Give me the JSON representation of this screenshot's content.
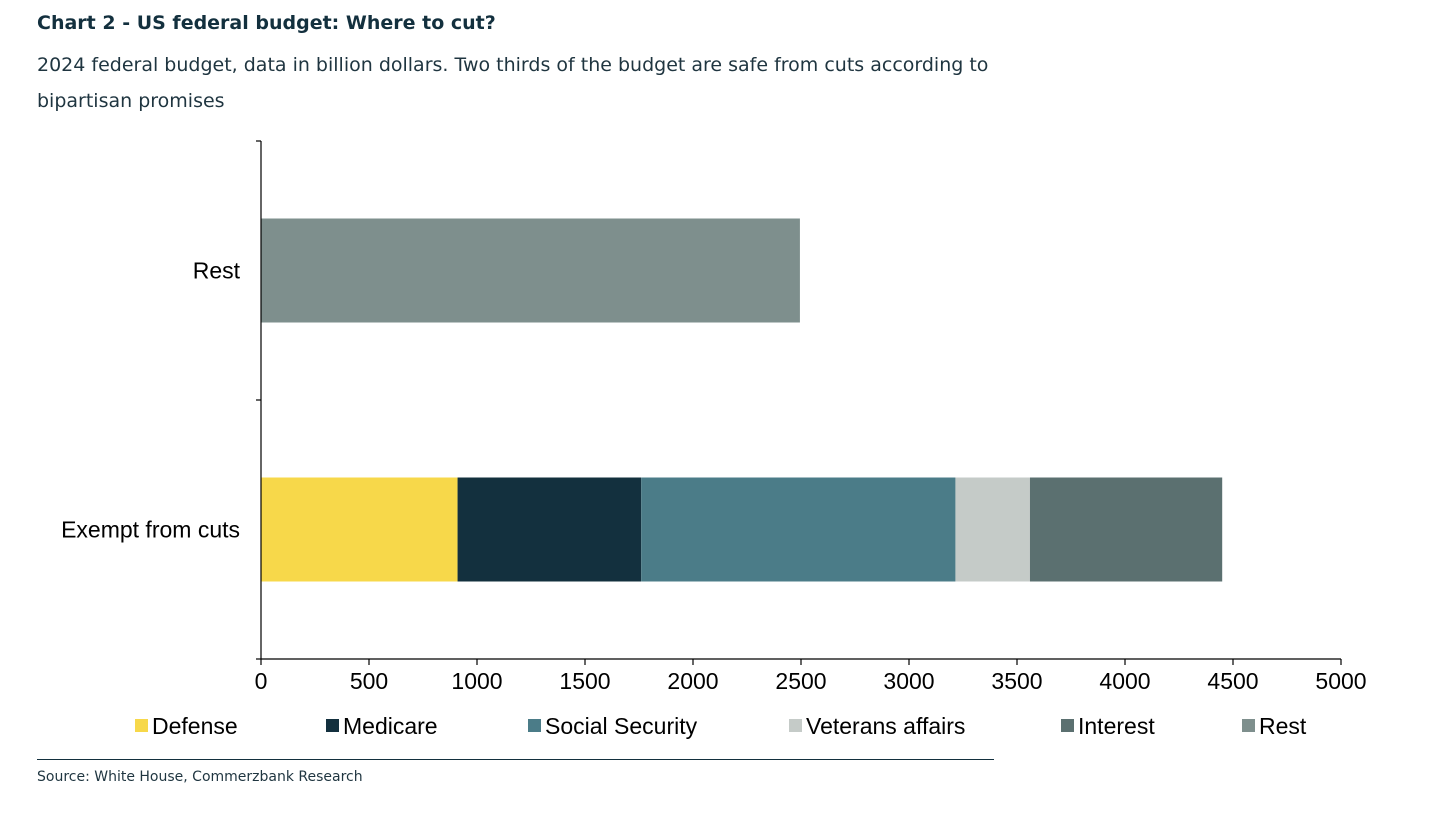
{
  "title": "Chart 2 - US federal budget: Where to cut?",
  "subtitle": "2024 federal budget, data in billion dollars. Two thirds of the budget are safe from cuts according to bipartisan promises",
  "source": "Source: White House, Commerzbank Research",
  "colors": {
    "Defense": "#f7d84a",
    "Medicare": "#13303e",
    "Social Security": "#4b7c88",
    "Veterans affairs": "#c5cbc8",
    "Interest": "#5b7070",
    "Rest": "#7e8f8d"
  },
  "chart_data": {
    "type": "bar",
    "orientation": "horizontal",
    "stacked": true,
    "categories": [
      "Rest",
      "Exempt from cuts"
    ],
    "series": [
      {
        "name": "Defense",
        "values": [
          0,
          910
        ]
      },
      {
        "name": "Medicare",
        "values": [
          0,
          850
        ]
      },
      {
        "name": "Social Security",
        "values": [
          0,
          1455
        ]
      },
      {
        "name": "Veterans affairs",
        "values": [
          0,
          345
        ]
      },
      {
        "name": "Interest",
        "values": [
          0,
          890
        ]
      },
      {
        "name": "Rest",
        "values": [
          2495,
          0
        ]
      }
    ],
    "xlim": [
      0,
      5000
    ],
    "xticks": [
      "0",
      "500",
      "1000",
      "1500",
      "2000",
      "2500",
      "3000",
      "3500",
      "4000",
      "4500",
      "5000"
    ],
    "xlabel": "",
    "ylabel": "",
    "grid": false,
    "legend_position": "bottom"
  }
}
